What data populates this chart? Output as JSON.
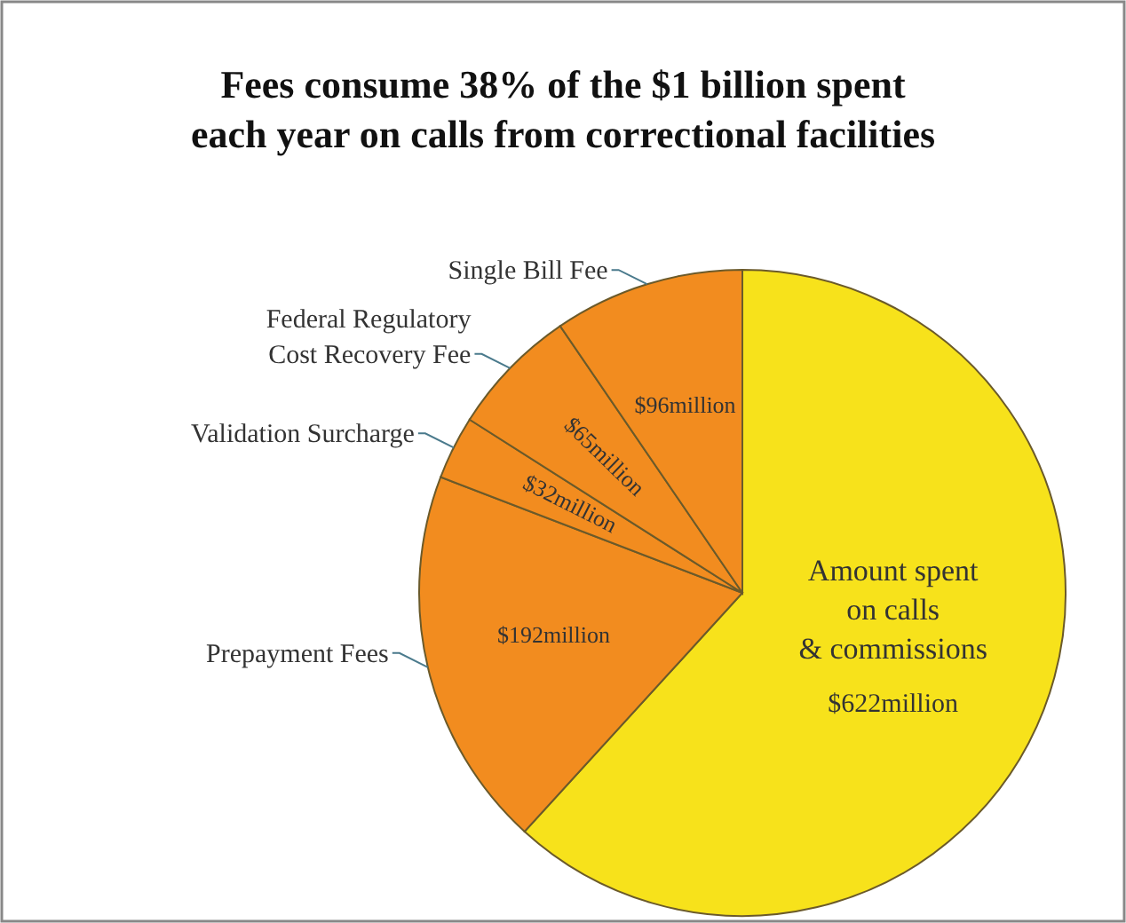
{
  "chart_data": {
    "type": "pie",
    "title": "Fees consume 38% of  the $1 billion spent\neach year on calls from correctional facilities",
    "categories": [
      "Amount spent\non calls\n& commissions",
      "Prepayment Fees",
      "Validation Surcharge",
      "Federal Regulatory\nCost Recovery Fee",
      "Single Bill Fee"
    ],
    "values": [
      622,
      192,
      32,
      65,
      96
    ],
    "value_labels": [
      "$622million",
      "$192million",
      "$32million",
      "$65million",
      "$96million"
    ],
    "colors": [
      "#f7e21b",
      "#f28c1f",
      "#f28c1f",
      "#f28c1f",
      "#f28c1f"
    ]
  }
}
